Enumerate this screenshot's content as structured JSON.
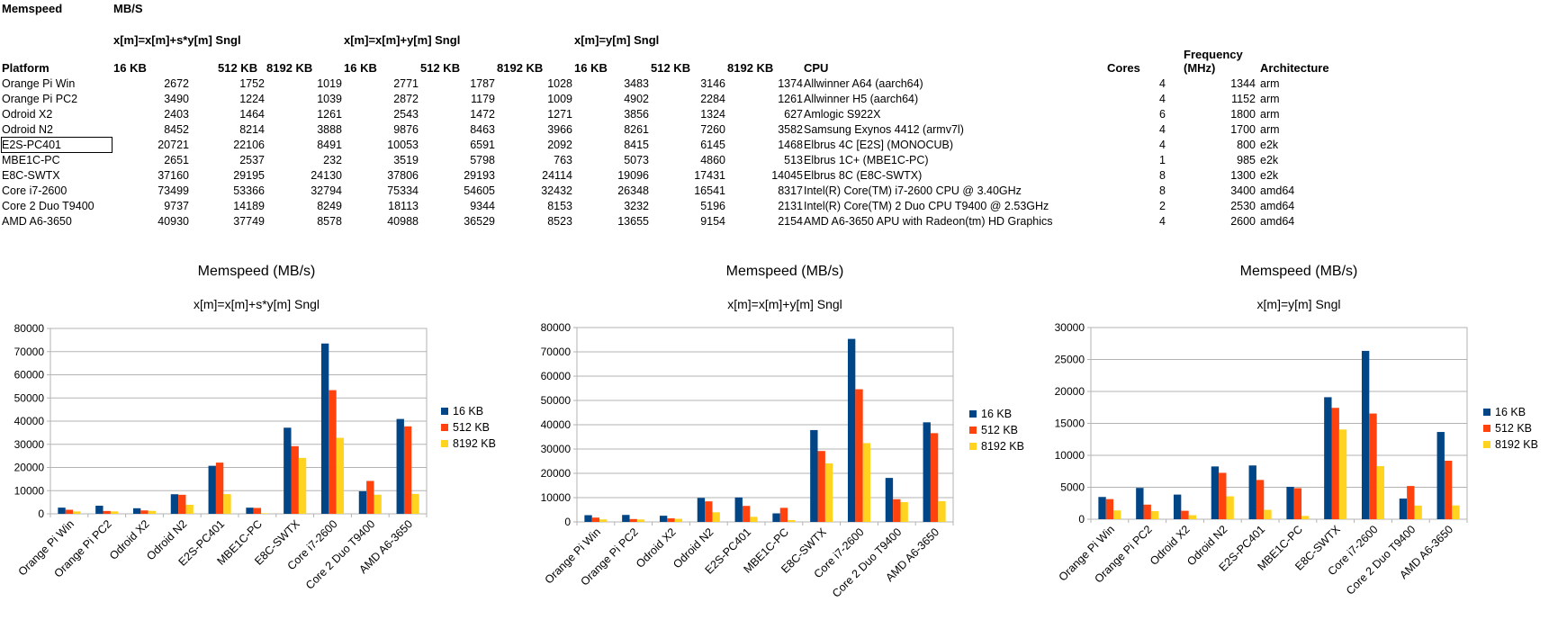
{
  "sheet": {
    "title": "Memspeed",
    "unit": "MB/S",
    "group_titles": [
      "x[m]=x[m]+s*y[m] Sngl",
      "x[m]=x[m]+y[m] Sngl",
      "x[m]=y[m] Sngl"
    ],
    "headers": {
      "platform": "Platform",
      "sizes": [
        "16 KB",
        "512 KB",
        "8192 KB"
      ],
      "cpu": "CPU",
      "cores": "Cores",
      "frequency_line1": "Frequency",
      "frequency_line2": "(MHz)",
      "architecture": "Architecture"
    },
    "rows": [
      {
        "platform": "Orange Pi Win",
        "v": [
          2672,
          1752,
          1019,
          2771,
          1787,
          1028,
          3483,
          3146,
          1374
        ],
        "cpu": "Allwinner A64 (aarch64)",
        "cores": 4,
        "freq": 1344,
        "arch": "arm"
      },
      {
        "platform": "Orange Pi PC2",
        "v": [
          3490,
          1224,
          1039,
          2872,
          1179,
          1009,
          4902,
          2284,
          1261
        ],
        "cpu": "Allwinner H5 (aarch64)",
        "cores": 4,
        "freq": 1152,
        "arch": "arm"
      },
      {
        "platform": "Odroid X2",
        "v": [
          2403,
          1464,
          1261,
          2543,
          1472,
          1271,
          3856,
          1324,
          627
        ],
        "cpu": "Amlogic S922X",
        "cores": 6,
        "freq": 1800,
        "arch": "arm"
      },
      {
        "platform": "Odroid N2",
        "v": [
          8452,
          8214,
          3888,
          9876,
          8463,
          3966,
          8261,
          7260,
          3582
        ],
        "cpu": "Samsung Exynos 4412 (armv7l)",
        "cores": 4,
        "freq": 1700,
        "arch": "arm"
      },
      {
        "platform": "E2S-PC401",
        "v": [
          20721,
          22106,
          8491,
          10053,
          6591,
          2092,
          8415,
          6145,
          1468
        ],
        "cpu": "Elbrus 4C [E2S] (MONOCUB)",
        "cores": 4,
        "freq": 800,
        "arch": "e2k"
      },
      {
        "platform": "MBE1C-PC",
        "v": [
          2651,
          2537,
          232,
          3519,
          5798,
          763,
          5073,
          4860,
          513
        ],
        "cpu": "Elbrus 1C+ (MBE1C-PC)",
        "cores": 1,
        "freq": 985,
        "arch": "e2k"
      },
      {
        "platform": "E8C-SWTX",
        "v": [
          37160,
          29195,
          24130,
          37806,
          29193,
          24114,
          19096,
          17431,
          14045
        ],
        "cpu": "Elbrus 8C (E8C-SWTX)",
        "cores": 8,
        "freq": 1300,
        "arch": "e2k"
      },
      {
        "platform": "Core i7-2600",
        "v": [
          73499,
          53366,
          32794,
          75334,
          54605,
          32432,
          26348,
          16541,
          8317
        ],
        "cpu": "Intel(R) Core(TM) i7-2600 CPU @ 3.40GHz",
        "cores": 8,
        "freq": 3400,
        "arch": "amd64"
      },
      {
        "platform": "Core 2 Duo T9400",
        "v": [
          9737,
          14189,
          8249,
          18113,
          9344,
          8153,
          3232,
          5196,
          2131
        ],
        "cpu": "Intel(R) Core(TM) 2 Duo CPU     T9400  @ 2.53GHz",
        "cores": 2,
        "freq": 2530,
        "arch": "amd64"
      },
      {
        "platform": "AMD A6-3650",
        "v": [
          40930,
          37749,
          8578,
          40988,
          36529,
          8523,
          13655,
          9154,
          2154
        ],
        "cpu": "AMD A6-3650 APU with Radeon(tm) HD Graphics",
        "cores": 4,
        "freq": 2600,
        "arch": "amd64"
      }
    ]
  },
  "colors": {
    "s16": "#004586",
    "s512": "#ff420e",
    "s8192": "#ffd320",
    "grid": "#b3b3b3"
  },
  "chart_data": [
    {
      "type": "bar",
      "title": "Memspeed (MB/s)",
      "subtitle": "x[m]=x[m]+s*y[m] Sngl",
      "categories": [
        "Orange Pi Win",
        "Orange Pi PC2",
        "Odroid X2",
        "Odroid N2",
        "E2S-PC401",
        "MBE1C-PC",
        "E8C-SWTX",
        "Core i7-2600",
        "Core 2 Duo T9400",
        "AMD A6-3650"
      ],
      "series": [
        {
          "name": "16 KB",
          "values": [
            2672,
            3490,
            2403,
            8452,
            20721,
            2651,
            37160,
            73499,
            9737,
            40930
          ]
        },
        {
          "name": "512 KB",
          "values": [
            1752,
            1224,
            1464,
            8214,
            22106,
            2537,
            29195,
            53366,
            14189,
            37749
          ]
        },
        {
          "name": "8192 KB",
          "values": [
            1019,
            1039,
            1261,
            3888,
            8491,
            232,
            24130,
            32794,
            8249,
            8578
          ]
        }
      ],
      "ylim": [
        0,
        80000
      ],
      "ystep": 10000,
      "grid": true,
      "legend": "right"
    },
    {
      "type": "bar",
      "title": "Memspeed (MB/s)",
      "subtitle": "x[m]=x[m]+y[m] Sngl",
      "categories": [
        "Orange Pi Win",
        "Orange Pi PC2",
        "Odroid X2",
        "Odroid N2",
        "E2S-PC401",
        "MBE1C-PC",
        "E8C-SWTX",
        "Core i7-2600",
        "Core 2 Duo T9400",
        "AMD A6-3650"
      ],
      "series": [
        {
          "name": "16 KB",
          "values": [
            2771,
            2872,
            2543,
            9876,
            10053,
            3519,
            37806,
            75334,
            18113,
            40988
          ]
        },
        {
          "name": "512 KB",
          "values": [
            1787,
            1179,
            1472,
            8463,
            6591,
            5798,
            29193,
            54605,
            9344,
            36529
          ]
        },
        {
          "name": "8192 KB",
          "values": [
            1028,
            1009,
            1271,
            3966,
            2092,
            763,
            24114,
            32432,
            8153,
            8523
          ]
        }
      ],
      "ylim": [
        0,
        80000
      ],
      "ystep": 10000,
      "grid": true,
      "legend": "right"
    },
    {
      "type": "bar",
      "title": "Memspeed (MB/s)",
      "subtitle": "x[m]=y[m] Sngl",
      "categories": [
        "Orange Pi Win",
        "Orange Pi PC2",
        "Odroid X2",
        "Odroid N2",
        "E2S-PC401",
        "MBE1C-PC",
        "E8C-SWTX",
        "Core i7-2600",
        "Core 2 Duo T9400",
        "AMD A6-3650"
      ],
      "series": [
        {
          "name": "16 KB",
          "values": [
            3483,
            4902,
            3856,
            8261,
            8415,
            5073,
            19096,
            26348,
            3232,
            13655
          ]
        },
        {
          "name": "512 KB",
          "values": [
            3146,
            2284,
            1324,
            7260,
            6145,
            4860,
            17431,
            16541,
            5196,
            9154
          ]
        },
        {
          "name": "8192 KB",
          "values": [
            1374,
            1261,
            627,
            3582,
            1468,
            513,
            14045,
            8317,
            2131,
            2154
          ]
        }
      ],
      "ylim": [
        0,
        30000
      ],
      "ystep": 5000,
      "grid": true,
      "legend": "right"
    }
  ]
}
